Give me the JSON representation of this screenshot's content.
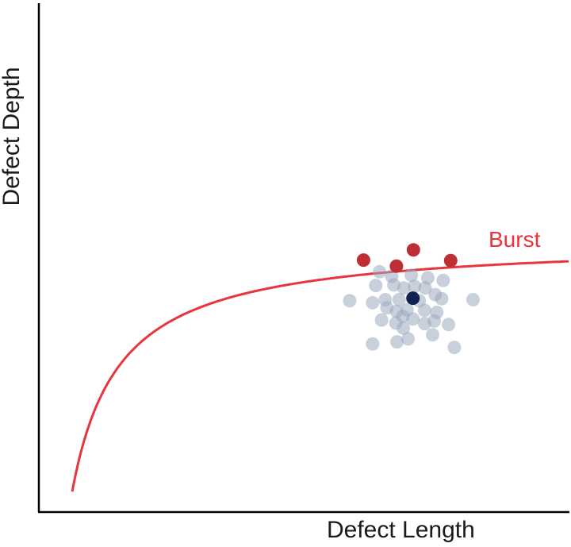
{
  "colors": {
    "axis": "#000000",
    "curve": "#e8343c",
    "burst_points": "#bd2f34",
    "sample_points": "#9aa9bd",
    "mean_point": "#0f2250"
  },
  "axes": {
    "x_title": "Defect Length",
    "y_title": "Defect Depth"
  },
  "curve": {
    "label": "Burst"
  },
  "points": {
    "burst": [
      {
        "length": 0.611,
        "depth": 0.496
      },
      {
        "length": 0.673,
        "depth": 0.484
      },
      {
        "length": 0.705,
        "depth": 0.516
      },
      {
        "length": 0.775,
        "depth": 0.495
      }
    ],
    "mean": {
      "length": 0.704,
      "depth": 0.421
    },
    "samples": [
      {
        "length": 0.641,
        "depth": 0.473
      },
      {
        "length": 0.664,
        "depth": 0.464
      },
      {
        "length": 0.701,
        "depth": 0.466
      },
      {
        "length": 0.732,
        "depth": 0.461
      },
      {
        "length": 0.761,
        "depth": 0.456
      },
      {
        "length": 0.634,
        "depth": 0.446
      },
      {
        "length": 0.668,
        "depth": 0.447
      },
      {
        "length": 0.687,
        "depth": 0.441
      },
      {
        "length": 0.707,
        "depth": 0.444
      },
      {
        "length": 0.727,
        "depth": 0.441
      },
      {
        "length": 0.746,
        "depth": 0.428
      },
      {
        "length": 0.585,
        "depth": 0.416
      },
      {
        "length": 0.628,
        "depth": 0.412
      },
      {
        "length": 0.652,
        "depth": 0.418
      },
      {
        "length": 0.678,
        "depth": 0.418
      },
      {
        "length": 0.716,
        "depth": 0.416
      },
      {
        "length": 0.758,
        "depth": 0.42
      },
      {
        "length": 0.817,
        "depth": 0.418
      },
      {
        "length": 0.655,
        "depth": 0.402
      },
      {
        "length": 0.673,
        "depth": 0.395
      },
      {
        "length": 0.693,
        "depth": 0.398
      },
      {
        "length": 0.726,
        "depth": 0.397
      },
      {
        "length": 0.749,
        "depth": 0.393
      },
      {
        "length": 0.645,
        "depth": 0.378
      },
      {
        "length": 0.672,
        "depth": 0.372
      },
      {
        "length": 0.685,
        "depth": 0.385
      },
      {
        "length": 0.704,
        "depth": 0.38
      },
      {
        "length": 0.726,
        "depth": 0.371
      },
      {
        "length": 0.744,
        "depth": 0.376
      },
      {
        "length": 0.771,
        "depth": 0.369
      },
      {
        "length": 0.686,
        "depth": 0.362
      },
      {
        "length": 0.741,
        "depth": 0.349
      },
      {
        "length": 0.628,
        "depth": 0.331
      },
      {
        "length": 0.674,
        "depth": 0.335
      },
      {
        "length": 0.695,
        "depth": 0.341
      },
      {
        "length": 0.782,
        "depth": 0.324
      }
    ]
  }
}
